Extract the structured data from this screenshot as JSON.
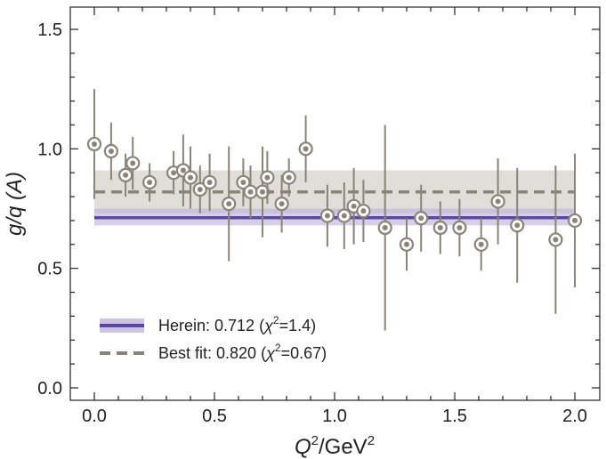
{
  "chart_data": {
    "type": "scatter",
    "title": "",
    "xlabel": "Q²/GeV²",
    "ylabel": "g/q (A)",
    "xlim": [
      -0.1,
      2.05
    ],
    "ylim": [
      -0.05,
      1.6
    ],
    "x_ticks": [
      0.0,
      0.5,
      1.0,
      1.5,
      2.0
    ],
    "x_tick_labels": [
      "0.0",
      "0.5",
      "1.0",
      "1.5",
      "2.0"
    ],
    "y_ticks": [
      0.0,
      0.5,
      1.0,
      1.5
    ],
    "y_tick_labels": [
      "0.0",
      "0.5",
      "1.0",
      "1.5"
    ],
    "grid": false,
    "legend_position": "bottom-left",
    "colors": {
      "herein_line": "#5b47a1",
      "herein_band": "#b9b1d8",
      "bestfit_line": "#8a8478",
      "bestfit_band": "#d9d8d2",
      "points": "#8a8478"
    },
    "series": [
      {
        "name": "data",
        "points": [
          {
            "x": 0.0,
            "y": 1.02,
            "err": 0.23
          },
          {
            "x": 0.07,
            "y": 0.99,
            "err": 0.12
          },
          {
            "x": 0.13,
            "y": 0.89,
            "err": 0.09
          },
          {
            "x": 0.16,
            "y": 0.94,
            "err": 0.11
          },
          {
            "x": 0.23,
            "y": 0.86,
            "err": 0.08
          },
          {
            "x": 0.33,
            "y": 0.9,
            "err": 0.09
          },
          {
            "x": 0.37,
            "y": 0.91,
            "err": 0.15
          },
          {
            "x": 0.4,
            "y": 0.88,
            "err": 0.13
          },
          {
            "x": 0.44,
            "y": 0.83,
            "err": 0.1
          },
          {
            "x": 0.48,
            "y": 0.86,
            "err": 0.12
          },
          {
            "x": 0.56,
            "y": 0.77,
            "err": 0.24
          },
          {
            "x": 0.62,
            "y": 0.86,
            "err": 0.1
          },
          {
            "x": 0.65,
            "y": 0.82,
            "err": 0.11
          },
          {
            "x": 0.7,
            "y": 0.82,
            "err": 0.19
          },
          {
            "x": 0.72,
            "y": 0.88,
            "err": 0.11
          },
          {
            "x": 0.78,
            "y": 0.77,
            "err": 0.12
          },
          {
            "x": 0.81,
            "y": 0.88,
            "err": 0.08
          },
          {
            "x": 0.88,
            "y": 1.0,
            "err": 0.14
          },
          {
            "x": 0.97,
            "y": 0.72,
            "err": 0.13
          },
          {
            "x": 1.04,
            "y": 0.72,
            "err": 0.14
          },
          {
            "x": 1.08,
            "y": 0.76,
            "err": 0.16
          },
          {
            "x": 1.12,
            "y": 0.74,
            "err": 0.13
          },
          {
            "x": 1.21,
            "y": 0.67,
            "err": 0.43
          },
          {
            "x": 1.3,
            "y": 0.6,
            "err": 0.11
          },
          {
            "x": 1.36,
            "y": 0.71,
            "err": 0.14
          },
          {
            "x": 1.44,
            "y": 0.67,
            "err": 0.11
          },
          {
            "x": 1.52,
            "y": 0.67,
            "err": 0.12
          },
          {
            "x": 1.61,
            "y": 0.6,
            "err": 0.11
          },
          {
            "x": 1.68,
            "y": 0.78,
            "err": 0.18
          },
          {
            "x": 1.76,
            "y": 0.68,
            "err": 0.24
          },
          {
            "x": 1.92,
            "y": 0.62,
            "err": 0.31
          },
          {
            "x": 2.0,
            "y": 0.7,
            "err": 0.28
          }
        ]
      }
    ],
    "fits": [
      {
        "name": "Herein",
        "value": 0.712,
        "band": [
          0.68,
          0.75
        ],
        "x_range": [
          0.0,
          2.0
        ],
        "style": "solid"
      },
      {
        "name": "Best fit",
        "value": 0.82,
        "band": [
          0.73,
          0.91
        ],
        "x_range": [
          0.0,
          2.0
        ],
        "style": "dashed"
      }
    ],
    "legend": [
      {
        "prefix": "Herein: 0.712 (",
        "symbol": "χ",
        "sup": "2",
        "suffix": "=1.4)"
      },
      {
        "prefix": "Best fit: 0.820 (",
        "symbol": "χ",
        "sup": "2",
        "suffix": "=0.67)"
      }
    ]
  },
  "labels": {
    "x_main": "Q",
    "x_sup": "2",
    "x_mid": "/GeV",
    "x_sup2": "2",
    "y_main": "g/q",
    "y_paren": "(A)"
  }
}
